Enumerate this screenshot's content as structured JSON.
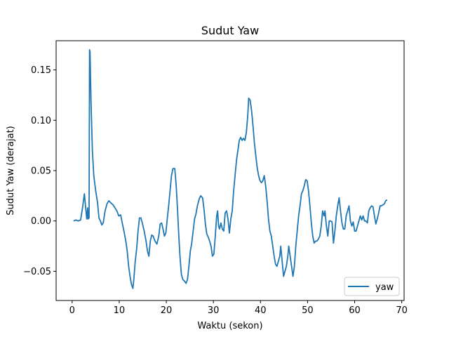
{
  "chart_data": {
    "type": "line",
    "title": "Sudut Yaw",
    "xlabel": "Waktu (sekon)",
    "ylabel": "Sudut Yaw (derajat)",
    "xlim": [
      -3.4,
      70.5
    ],
    "ylim": [
      -0.079,
      0.179
    ],
    "xticks": [
      0,
      10,
      20,
      30,
      40,
      50,
      60,
      70
    ],
    "xtick_labels": [
      "0",
      "10",
      "20",
      "30",
      "40",
      "50",
      "60",
      "70"
    ],
    "yticks": [
      -0.05,
      0.0,
      0.05,
      0.1,
      0.15
    ],
    "ytick_labels": [
      "−0.05",
      "0.00",
      "0.05",
      "0.10",
      "0.15"
    ],
    "grid": false,
    "legend": {
      "placement": "lower-right"
    },
    "series": [
      {
        "name": "yaw",
        "color": "#1f77b4",
        "points": [
          [
            0.3,
            0.0
          ],
          [
            0.8,
            0.001
          ],
          [
            1.3,
            0.0
          ],
          [
            1.8,
            0.001
          ],
          [
            2.2,
            0.013
          ],
          [
            2.6,
            0.027
          ],
          [
            2.9,
            0.012
          ],
          [
            3.1,
            0.002
          ],
          [
            3.3,
            0.013
          ],
          [
            3.4,
            0.002
          ],
          [
            3.6,
            0.003
          ],
          [
            3.7,
            0.17
          ],
          [
            3.8,
            0.168
          ],
          [
            4.0,
            0.12
          ],
          [
            4.3,
            0.07
          ],
          [
            4.6,
            0.045
          ],
          [
            5.0,
            0.03
          ],
          [
            5.4,
            0.018
          ],
          [
            5.7,
            0.003
          ],
          [
            6.0,
            0.0
          ],
          [
            6.3,
            -0.004
          ],
          [
            6.6,
            -0.002
          ],
          [
            7.0,
            0.01
          ],
          [
            7.4,
            0.017
          ],
          [
            7.8,
            0.02
          ],
          [
            8.2,
            0.018
          ],
          [
            8.7,
            0.016
          ],
          [
            9.1,
            0.013
          ],
          [
            9.5,
            0.01
          ],
          [
            9.9,
            0.005
          ],
          [
            10.3,
            0.006
          ],
          [
            10.6,
            -0.001
          ],
          [
            11.0,
            -0.01
          ],
          [
            11.4,
            -0.02
          ],
          [
            11.7,
            -0.03
          ],
          [
            12.0,
            -0.045
          ],
          [
            12.3,
            -0.055
          ],
          [
            12.6,
            -0.063
          ],
          [
            12.9,
            -0.067
          ],
          [
            13.1,
            -0.058
          ],
          [
            13.4,
            -0.04
          ],
          [
            13.7,
            -0.028
          ],
          [
            14.0,
            -0.01
          ],
          [
            14.3,
            0.003
          ],
          [
            14.6,
            0.003
          ],
          [
            14.9,
            -0.002
          ],
          [
            15.3,
            -0.01
          ],
          [
            15.7,
            -0.02
          ],
          [
            16.0,
            -0.03
          ],
          [
            16.3,
            -0.035
          ],
          [
            16.6,
            -0.02
          ],
          [
            16.9,
            -0.014
          ],
          [
            17.2,
            -0.015
          ],
          [
            17.6,
            -0.02
          ],
          [
            18.0,
            -0.023
          ],
          [
            18.4,
            -0.015
          ],
          [
            18.7,
            -0.003
          ],
          [
            19.0,
            -0.002
          ],
          [
            19.3,
            -0.008
          ],
          [
            19.6,
            -0.015
          ],
          [
            19.9,
            -0.012
          ],
          [
            20.2,
            0.002
          ],
          [
            20.5,
            0.015
          ],
          [
            20.8,
            0.03
          ],
          [
            21.1,
            0.045
          ],
          [
            21.4,
            0.052
          ],
          [
            21.8,
            0.052
          ],
          [
            22.1,
            0.035
          ],
          [
            22.4,
            0.01
          ],
          [
            22.6,
            -0.01
          ],
          [
            22.9,
            -0.035
          ],
          [
            23.2,
            -0.053
          ],
          [
            23.5,
            -0.058
          ],
          [
            23.9,
            -0.06
          ],
          [
            24.2,
            -0.062
          ],
          [
            24.5,
            -0.058
          ],
          [
            24.8,
            -0.045
          ],
          [
            25.1,
            -0.03
          ],
          [
            25.4,
            -0.022
          ],
          [
            25.7,
            -0.01
          ],
          [
            26.0,
            0.002
          ],
          [
            26.3,
            0.007
          ],
          [
            26.6,
            0.015
          ],
          [
            27.0,
            0.022
          ],
          [
            27.3,
            0.025
          ],
          [
            27.7,
            0.023
          ],
          [
            28.0,
            0.012
          ],
          [
            28.3,
            -0.003
          ],
          [
            28.6,
            -0.013
          ],
          [
            28.9,
            -0.016
          ],
          [
            29.2,
            -0.02
          ],
          [
            29.5,
            -0.025
          ],
          [
            29.8,
            -0.035
          ],
          [
            30.1,
            -0.033
          ],
          [
            30.4,
            -0.015
          ],
          [
            30.7,
            0.005
          ],
          [
            30.9,
            0.01
          ],
          [
            31.1,
            -0.005
          ],
          [
            31.3,
            -0.008
          ],
          [
            31.6,
            -0.002
          ],
          [
            31.9,
            -0.008
          ],
          [
            32.2,
            -0.01
          ],
          [
            32.5,
            0.008
          ],
          [
            32.8,
            0.01
          ],
          [
            33.1,
            0.002
          ],
          [
            33.4,
            -0.012
          ],
          [
            33.7,
            0.002
          ],
          [
            34.0,
            0.01
          ],
          [
            34.3,
            0.03
          ],
          [
            34.6,
            0.045
          ],
          [
            34.9,
            0.06
          ],
          [
            35.2,
            0.07
          ],
          [
            35.5,
            0.08
          ],
          [
            35.8,
            0.083
          ],
          [
            36.1,
            0.08
          ],
          [
            36.4,
            0.082
          ],
          [
            36.7,
            0.08
          ],
          [
            37.0,
            0.088
          ],
          [
            37.3,
            0.105
          ],
          [
            37.5,
            0.122
          ],
          [
            37.8,
            0.12
          ],
          [
            38.1,
            0.11
          ],
          [
            38.4,
            0.095
          ],
          [
            38.7,
            0.078
          ],
          [
            39.0,
            0.065
          ],
          [
            39.3,
            0.053
          ],
          [
            39.6,
            0.045
          ],
          [
            39.9,
            0.04
          ],
          [
            40.2,
            0.038
          ],
          [
            40.5,
            0.04
          ],
          [
            40.8,
            0.045
          ],
          [
            41.1,
            0.035
          ],
          [
            41.4,
            0.02
          ],
          [
            41.7,
            0.002
          ],
          [
            42.0,
            -0.01
          ],
          [
            42.3,
            -0.015
          ],
          [
            42.6,
            -0.025
          ],
          [
            42.9,
            -0.035
          ],
          [
            43.2,
            -0.043
          ],
          [
            43.5,
            -0.045
          ],
          [
            43.8,
            -0.04
          ],
          [
            44.1,
            -0.035
          ],
          [
            44.3,
            -0.025
          ],
          [
            44.6,
            -0.04
          ],
          [
            44.9,
            -0.055
          ],
          [
            45.2,
            -0.05
          ],
          [
            45.5,
            -0.045
          ],
          [
            45.8,
            -0.035
          ],
          [
            46.0,
            -0.025
          ],
          [
            46.3,
            -0.035
          ],
          [
            46.6,
            -0.045
          ],
          [
            46.9,
            -0.055
          ],
          [
            47.2,
            -0.045
          ],
          [
            47.5,
            -0.025
          ],
          [
            47.8,
            -0.01
          ],
          [
            48.1,
            0.005
          ],
          [
            48.4,
            0.015
          ],
          [
            48.7,
            0.027
          ],
          [
            49.0,
            0.03
          ],
          [
            49.3,
            0.035
          ],
          [
            49.6,
            0.041
          ],
          [
            49.9,
            0.04
          ],
          [
            50.2,
            0.03
          ],
          [
            50.5,
            0.015
          ],
          [
            50.8,
            -0.002
          ],
          [
            51.1,
            -0.015
          ],
          [
            51.4,
            -0.022
          ],
          [
            51.7,
            -0.02
          ],
          [
            52.0,
            -0.02
          ],
          [
            52.3,
            -0.018
          ],
          [
            52.6,
            -0.015
          ],
          [
            52.9,
            -0.005
          ],
          [
            53.2,
            0.01
          ],
          [
            53.5,
            0.005
          ],
          [
            53.7,
            0.01
          ],
          [
            54.0,
            -0.005
          ],
          [
            54.3,
            -0.015
          ],
          [
            54.6,
            0.0
          ],
          [
            54.9,
            0.0
          ],
          [
            55.2,
            -0.001
          ],
          [
            55.5,
            -0.022
          ],
          [
            55.8,
            -0.01
          ],
          [
            56.1,
            0.005
          ],
          [
            56.4,
            0.015
          ],
          [
            56.7,
            0.023
          ],
          [
            57.0,
            0.01
          ],
          [
            57.3,
            -0.002
          ],
          [
            57.6,
            -0.008
          ],
          [
            57.9,
            -0.008
          ],
          [
            58.2,
            0.005
          ],
          [
            58.5,
            0.01
          ],
          [
            58.8,
            0.015
          ],
          [
            59.1,
            0.0
          ],
          [
            59.4,
            -0.005
          ],
          [
            59.7,
            -0.001
          ],
          [
            60.0,
            -0.01
          ],
          [
            60.3,
            -0.01
          ],
          [
            60.6,
            -0.005
          ],
          [
            60.9,
            0.0
          ],
          [
            61.2,
            0.005
          ],
          [
            61.5,
            0.001
          ],
          [
            61.8,
            0.005
          ],
          [
            62.1,
            0.0
          ],
          [
            62.4,
            0.0
          ],
          [
            62.7,
            -0.002
          ],
          [
            63.0,
            0.01
          ],
          [
            63.3,
            0.013
          ],
          [
            63.6,
            0.015
          ],
          [
            63.9,
            0.014
          ],
          [
            64.2,
            0.005
          ],
          [
            64.5,
            -0.003
          ],
          [
            64.8,
            0.002
          ],
          [
            65.1,
            0.008
          ],
          [
            65.4,
            0.015
          ],
          [
            65.7,
            0.015
          ],
          [
            66.0,
            0.016
          ],
          [
            66.3,
            0.017
          ],
          [
            66.6,
            0.02
          ],
          [
            66.9,
            0.021
          ]
        ]
      }
    ]
  }
}
